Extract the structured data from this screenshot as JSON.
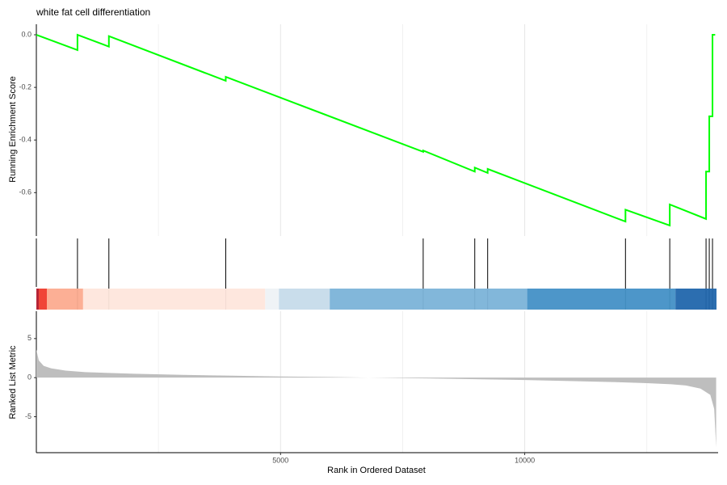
{
  "chart_data": {
    "type": "gsea",
    "title": "white fat cell differentiation",
    "xlabel": "Rank in Ordered Dataset",
    "xlim": [
      0,
      13960
    ],
    "xticks": [
      5000,
      10000
    ],
    "minor_xticks": [
      2500,
      7500,
      12500
    ],
    "es": {
      "ylabel": "Running Enrichment Score",
      "ylim": [
        -0.765,
        0.04
      ],
      "yticks": [
        {
          "value": 0,
          "label": "0.0"
        },
        -0.2,
        -0.4,
        -0.6
      ],
      "color": "#00ff00",
      "x": [
        0,
        842,
        842,
        1485,
        1485,
        3878,
        3878,
        7921,
        7921,
        8977,
        8977,
        9241,
        9241,
        12063,
        12063,
        12970,
        12970,
        13713,
        13713,
        13779,
        13779,
        13845,
        13845,
        13900
      ],
      "values": [
        0,
        -0.058,
        0,
        -0.045,
        -0.005,
        -0.175,
        -0.16,
        -0.445,
        -0.44,
        -0.52,
        -0.505,
        -0.525,
        -0.51,
        -0.71,
        -0.665,
        -0.725,
        -0.645,
        -0.7,
        -0.52,
        -0.52,
        -0.31,
        -0.31,
        0,
        0
      ]
    },
    "hits": [
      842,
      1485,
      3878,
      7921,
      8977,
      9241,
      12063,
      12970,
      13713,
      13779,
      13845
    ],
    "color_bands": [
      {
        "start": 0,
        "end": 50,
        "color": "#b2182b"
      },
      {
        "start": 50,
        "end": 215,
        "color": "#ef3b2c"
      },
      {
        "start": 215,
        "end": 957,
        "color": "#fcab8f"
      },
      {
        "start": 957,
        "end": 4686,
        "color": "#fee6dc"
      },
      {
        "start": 4686,
        "end": 4967,
        "color": "#eef2f6"
      },
      {
        "start": 4967,
        "end": 6007,
        "color": "#c6dbea"
      },
      {
        "start": 6007,
        "end": 10050,
        "color": "#7bb3d8"
      },
      {
        "start": 10050,
        "end": 13086,
        "color": "#4390c6"
      },
      {
        "start": 13086,
        "end": 13927,
        "color": "#2166ac"
      }
    ],
    "metric": {
      "ylabel": "Ranked List Metric",
      "ylim": [
        -9.6,
        8.5
      ],
      "yticks": [
        5,
        0,
        -5
      ],
      "color": "#bebebe",
      "x": [
        0,
        50,
        150,
        300,
        600,
        1000,
        2000,
        3000,
        4000,
        5000,
        6000,
        6800,
        8000,
        9000,
        10000,
        11000,
        12000,
        12500,
        13000,
        13300,
        13600,
        13800,
        13880,
        13920
      ],
      "values": [
        3.6,
        2.2,
        1.5,
        1.2,
        0.9,
        0.7,
        0.5,
        0.35,
        0.25,
        0.15,
        0.08,
        0,
        -0.1,
        -0.2,
        -0.3,
        -0.45,
        -0.6,
        -0.7,
        -0.85,
        -1.0,
        -1.4,
        -2.2,
        -4,
        -8.9
      ]
    }
  }
}
